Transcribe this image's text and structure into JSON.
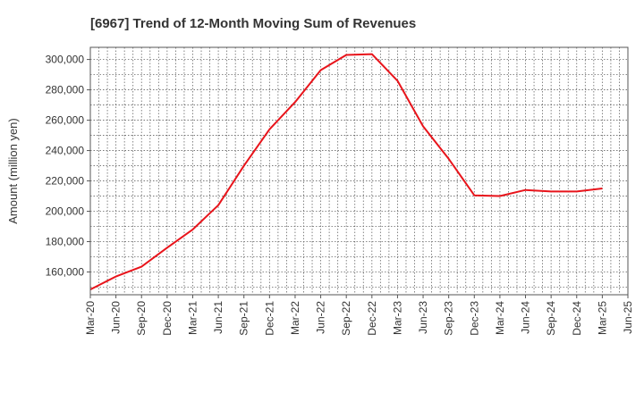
{
  "chart_data": {
    "type": "line",
    "title": "[6967]  Trend of 12-Month Moving Sum of Revenues",
    "xlabel": "",
    "ylabel": "Amount (million yen)",
    "x_tick_labels": [
      "Mar-20",
      "Jun-20",
      "Sep-20",
      "Dec-20",
      "Mar-21",
      "Jun-21",
      "Sep-21",
      "Dec-21",
      "Mar-22",
      "Jun-22",
      "Sep-22",
      "Dec-22",
      "Mar-23",
      "Jun-23",
      "Sep-23",
      "Dec-23",
      "Mar-24",
      "Jun-24",
      "Sep-24",
      "Dec-24",
      "Mar-25",
      "Jun-25"
    ],
    "y_ticks": [
      160000,
      180000,
      200000,
      220000,
      240000,
      260000,
      280000,
      300000
    ],
    "y_tick_labels": [
      "160,000",
      "180,000",
      "200,000",
      "220,000",
      "240,000",
      "260,000",
      "280,000",
      "300,000"
    ],
    "ylim": [
      145000,
      308000
    ],
    "grid": true,
    "legend": "none",
    "series": [
      {
        "color": "#e8141b",
        "x": [
          "Mar-20",
          "Jun-20",
          "Sep-20",
          "Dec-20",
          "Mar-21",
          "Jun-21",
          "Sep-21",
          "Dec-21",
          "Mar-22",
          "Jun-22",
          "Sep-22",
          "Dec-22",
          "Mar-23",
          "Jun-23",
          "Sep-23",
          "Dec-23",
          "Mar-24",
          "Jun-24",
          "Sep-24",
          "Dec-24",
          "Mar-25"
        ],
        "values": [
          148500,
          157000,
          163500,
          176000,
          188000,
          204000,
          230000,
          254000,
          272000,
          293000,
          303000,
          303500,
          286000,
          256000,
          234500,
          210500,
          210000,
          214000,
          213000,
          213000,
          215000
        ]
      }
    ]
  }
}
